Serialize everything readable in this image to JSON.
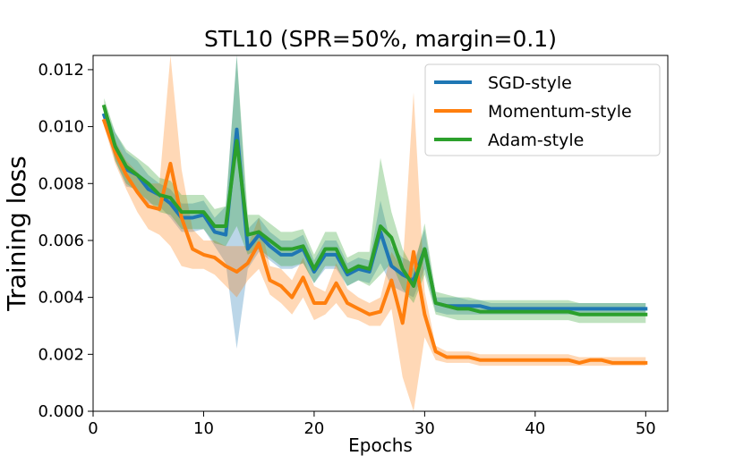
{
  "chart_data": {
    "type": "line",
    "title": "STL10 (SPR=50%, margin=0.1)",
    "xlabel": "Epochs",
    "ylabel": "Training loss",
    "xlim": [
      0,
      52
    ],
    "ylim": [
      0,
      0.0125
    ],
    "xticks": [
      0,
      10,
      20,
      30,
      40,
      50
    ],
    "xtick_labels": [
      "0",
      "10",
      "20",
      "30",
      "40",
      "50"
    ],
    "yticks": [
      0.0,
      0.002,
      0.004,
      0.006,
      0.008,
      0.01,
      0.012
    ],
    "ytick_labels": [
      "0.000",
      "0.002",
      "0.004",
      "0.006",
      "0.008",
      "0.010",
      "0.012"
    ],
    "legend_position": "top-right",
    "grid": false,
    "x": [
      1,
      2,
      3,
      4,
      5,
      6,
      7,
      8,
      9,
      10,
      11,
      12,
      13,
      14,
      15,
      16,
      17,
      18,
      19,
      20,
      21,
      22,
      23,
      24,
      25,
      26,
      27,
      28,
      29,
      30,
      31,
      32,
      33,
      34,
      35,
      36,
      37,
      38,
      39,
      40,
      41,
      42,
      43,
      44,
      45,
      46,
      47,
      48,
      49,
      50
    ],
    "series": [
      {
        "name": "SGD-style",
        "color": "#1f77b4",
        "values": [
          0.0104,
          0.0093,
          0.0085,
          0.0083,
          0.0078,
          0.0076,
          0.0073,
          0.0068,
          0.0068,
          0.0069,
          0.0063,
          0.0062,
          0.0099,
          0.0057,
          0.0062,
          0.0058,
          0.0055,
          0.0055,
          0.0057,
          0.0049,
          0.0055,
          0.0055,
          0.0048,
          0.005,
          0.0049,
          0.0063,
          0.0051,
          0.0048,
          0.0046,
          0.0057,
          0.0038,
          0.0037,
          0.0037,
          0.0037,
          0.0037,
          0.0036,
          0.0036,
          0.0036,
          0.0036,
          0.0036,
          0.0036,
          0.0036,
          0.0036,
          0.0036,
          0.0036,
          0.0036,
          0.0036,
          0.0036,
          0.0036,
          0.0036
        ],
        "lower": [
          0.0101,
          0.0088,
          0.0079,
          0.0078,
          0.0073,
          0.0072,
          0.0068,
          0.0063,
          0.0063,
          0.0064,
          0.0058,
          0.0052,
          0.0022,
          0.005,
          0.0056,
          0.0053,
          0.005,
          0.005,
          0.0052,
          0.0045,
          0.005,
          0.005,
          0.0044,
          0.0046,
          0.0045,
          0.0052,
          0.0044,
          0.0042,
          0.004,
          0.005,
          0.0035,
          0.0034,
          0.0034,
          0.0034,
          0.0034,
          0.0034,
          0.0034,
          0.0034,
          0.0034,
          0.0034,
          0.0034,
          0.0034,
          0.0034,
          0.0034,
          0.0034,
          0.0034,
          0.0034,
          0.0034,
          0.0034,
          0.0034
        ],
        "upper": [
          0.0107,
          0.0098,
          0.0091,
          0.0088,
          0.0083,
          0.008,
          0.0078,
          0.0073,
          0.0073,
          0.0074,
          0.0068,
          0.0072,
          0.0125,
          0.0064,
          0.0068,
          0.0063,
          0.006,
          0.006,
          0.0062,
          0.0053,
          0.006,
          0.006,
          0.0052,
          0.0054,
          0.0053,
          0.0074,
          0.0058,
          0.0054,
          0.0052,
          0.0064,
          0.004,
          0.004,
          0.004,
          0.0039,
          0.0039,
          0.0038,
          0.0038,
          0.0038,
          0.0038,
          0.0038,
          0.0038,
          0.0038,
          0.0038,
          0.0038,
          0.0038,
          0.0038,
          0.0038,
          0.0038,
          0.0038,
          0.0038
        ]
      },
      {
        "name": "Momentum-style",
        "color": "#ff7f0e",
        "values": [
          0.0102,
          0.0091,
          0.0083,
          0.0077,
          0.0072,
          0.0071,
          0.0087,
          0.0068,
          0.0057,
          0.0055,
          0.0054,
          0.0051,
          0.0049,
          0.0052,
          0.0059,
          0.0046,
          0.0044,
          0.004,
          0.0047,
          0.0038,
          0.0038,
          0.0045,
          0.0038,
          0.0036,
          0.0034,
          0.0035,
          0.0046,
          0.0031,
          0.0056,
          0.0034,
          0.0021,
          0.0019,
          0.0019,
          0.0019,
          0.0018,
          0.0018,
          0.0018,
          0.0018,
          0.0018,
          0.0018,
          0.0018,
          0.0018,
          0.0018,
          0.0017,
          0.0018,
          0.0018,
          0.0017,
          0.0017,
          0.0017,
          0.0017
        ],
        "lower": [
          0.01,
          0.0087,
          0.0078,
          0.007,
          0.0064,
          0.0062,
          0.0058,
          0.0051,
          0.005,
          0.005,
          0.0048,
          0.0044,
          0.004,
          0.0046,
          0.005,
          0.0041,
          0.0038,
          0.0034,
          0.004,
          0.0032,
          0.0034,
          0.0038,
          0.0033,
          0.0032,
          0.003,
          0.003,
          0.0036,
          0.0012,
          0.0,
          0.0026,
          0.0018,
          0.0017,
          0.0017,
          0.0017,
          0.0016,
          0.0016,
          0.0016,
          0.0016,
          0.0016,
          0.0016,
          0.0016,
          0.0016,
          0.0016,
          0.0016,
          0.0016,
          0.0016,
          0.0016,
          0.0016,
          0.0016,
          0.0016
        ],
        "upper": [
          0.0104,
          0.0095,
          0.0088,
          0.0084,
          0.008,
          0.008,
          0.0125,
          0.0085,
          0.0064,
          0.006,
          0.006,
          0.0058,
          0.0058,
          0.0058,
          0.0068,
          0.0051,
          0.005,
          0.0046,
          0.0054,
          0.0044,
          0.0042,
          0.0052,
          0.0043,
          0.004,
          0.0038,
          0.004,
          0.0056,
          0.005,
          0.0112,
          0.0042,
          0.0023,
          0.0021,
          0.0021,
          0.0021,
          0.002,
          0.002,
          0.002,
          0.002,
          0.002,
          0.002,
          0.002,
          0.002,
          0.002,
          0.0019,
          0.0019,
          0.0019,
          0.0019,
          0.0019,
          0.0019,
          0.0019
        ]
      },
      {
        "name": "Adam-style",
        "color": "#2ca02c",
        "values": [
          0.0107,
          0.0093,
          0.0086,
          0.0083,
          0.008,
          0.0076,
          0.0075,
          0.007,
          0.007,
          0.007,
          0.0065,
          0.0065,
          0.0095,
          0.0062,
          0.0063,
          0.006,
          0.0057,
          0.0057,
          0.0058,
          0.005,
          0.0057,
          0.0057,
          0.0049,
          0.0051,
          0.005,
          0.0065,
          0.0061,
          0.005,
          0.0044,
          0.0057,
          0.0038,
          0.0037,
          0.0036,
          0.0036,
          0.0035,
          0.0035,
          0.0035,
          0.0035,
          0.0035,
          0.0035,
          0.0035,
          0.0035,
          0.0035,
          0.0034,
          0.0034,
          0.0034,
          0.0034,
          0.0034,
          0.0034,
          0.0034
        ],
        "lower": [
          0.0104,
          0.0088,
          0.008,
          0.0077,
          0.0074,
          0.007,
          0.0069,
          0.0064,
          0.0064,
          0.0064,
          0.0059,
          0.0058,
          0.0065,
          0.0055,
          0.0057,
          0.0054,
          0.0051,
          0.0051,
          0.0052,
          0.0045,
          0.0051,
          0.0051,
          0.0044,
          0.0046,
          0.0044,
          0.0048,
          0.0052,
          0.0043,
          0.0038,
          0.0048,
          0.0034,
          0.0033,
          0.0032,
          0.0032,
          0.0032,
          0.0032,
          0.0032,
          0.0032,
          0.0032,
          0.0032,
          0.0032,
          0.0032,
          0.0032,
          0.0031,
          0.0031,
          0.0031,
          0.0031,
          0.0031,
          0.0031,
          0.0031
        ],
        "upper": [
          0.011,
          0.0098,
          0.0092,
          0.0089,
          0.0086,
          0.0082,
          0.0081,
          0.0076,
          0.0076,
          0.0076,
          0.0071,
          0.0072,
          0.0125,
          0.0069,
          0.0069,
          0.0066,
          0.0063,
          0.0063,
          0.0064,
          0.0055,
          0.0063,
          0.0063,
          0.0054,
          0.0056,
          0.0056,
          0.0089,
          0.007,
          0.0057,
          0.005,
          0.0066,
          0.0042,
          0.0041,
          0.004,
          0.004,
          0.0039,
          0.0039,
          0.0039,
          0.0039,
          0.0039,
          0.0039,
          0.0039,
          0.0039,
          0.0039,
          0.0038,
          0.0038,
          0.0038,
          0.0038,
          0.0038,
          0.0038,
          0.0038
        ]
      }
    ]
  }
}
